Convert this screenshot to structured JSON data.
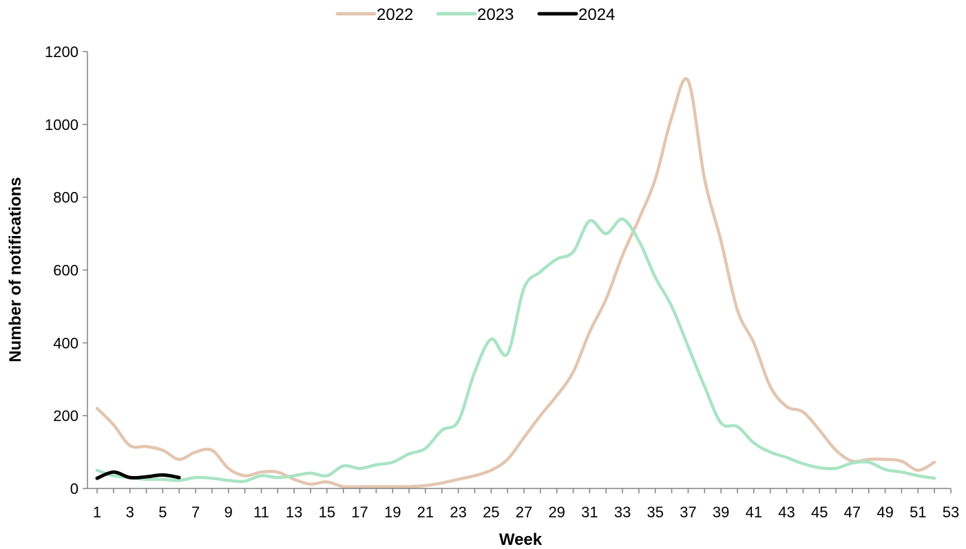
{
  "chart_data": {
    "type": "line",
    "title": "",
    "xlabel": "Week",
    "ylabel": "Number of notifications",
    "xlim": [
      1,
      53
    ],
    "ylim": [
      0,
      1200
    ],
    "x_ticks": [
      1,
      3,
      5,
      7,
      9,
      11,
      13,
      15,
      17,
      19,
      21,
      23,
      25,
      27,
      29,
      31,
      33,
      35,
      37,
      39,
      41,
      43,
      45,
      47,
      49,
      51,
      53
    ],
    "y_ticks": [
      0,
      200,
      400,
      600,
      800,
      1000,
      1200
    ],
    "grid": false,
    "legend_position": "top-center",
    "series": [
      {
        "name": "2022",
        "color": "#E3C6B0",
        "x": [
          1,
          2,
          3,
          4,
          5,
          6,
          7,
          8,
          9,
          10,
          11,
          12,
          13,
          14,
          15,
          16,
          17,
          18,
          19,
          20,
          21,
          22,
          23,
          24,
          25,
          26,
          27,
          28,
          29,
          30,
          31,
          32,
          33,
          34,
          35,
          36,
          37,
          38,
          39,
          40,
          41,
          42,
          43,
          44,
          45,
          46,
          47,
          48,
          49,
          50,
          51,
          52
        ],
        "values": [
          220,
          175,
          118,
          115,
          105,
          80,
          100,
          105,
          55,
          35,
          45,
          45,
          25,
          12,
          18,
          5,
          5,
          5,
          5,
          5,
          8,
          15,
          25,
          35,
          50,
          80,
          140,
          200,
          255,
          320,
          430,
          520,
          640,
          740,
          850,
          1020,
          1120,
          850,
          680,
          490,
          400,
          280,
          225,
          210,
          160,
          105,
          75,
          80,
          80,
          75,
          50,
          72
        ]
      },
      {
        "name": "2023",
        "color": "#A9E4C4",
        "x": [
          1,
          2,
          3,
          4,
          5,
          6,
          7,
          8,
          9,
          10,
          11,
          12,
          13,
          14,
          15,
          16,
          17,
          18,
          19,
          20,
          21,
          22,
          23,
          24,
          25,
          26,
          27,
          28,
          29,
          30,
          31,
          32,
          33,
          34,
          35,
          36,
          37,
          38,
          39,
          40,
          41,
          42,
          43,
          44,
          45,
          46,
          47,
          48,
          49,
          50,
          51,
          52
        ],
        "values": [
          50,
          35,
          30,
          25,
          25,
          22,
          30,
          28,
          22,
          20,
          35,
          30,
          35,
          42,
          35,
          62,
          55,
          65,
          72,
          95,
          110,
          160,
          185,
          320,
          410,
          370,
          550,
          595,
          630,
          650,
          735,
          700,
          740,
          680,
          580,
          500,
          390,
          280,
          180,
          170,
          125,
          100,
          85,
          68,
          57,
          55,
          70,
          72,
          52,
          45,
          35,
          28
        ]
      },
      {
        "name": "2024",
        "color": "#000000",
        "x": [
          1,
          2,
          3,
          4,
          5,
          6
        ],
        "values": [
          28,
          45,
          30,
          32,
          37,
          30
        ]
      }
    ]
  }
}
